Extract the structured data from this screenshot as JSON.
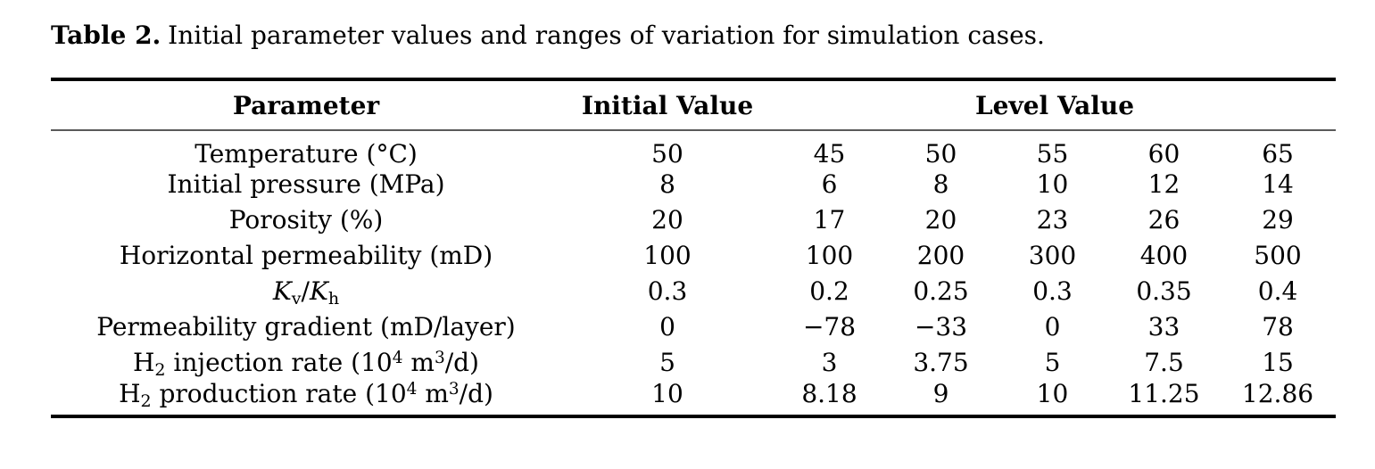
{
  "caption": {
    "label": "Table 2.",
    "text": "Initial parameter values and ranges of variation for simulation cases."
  },
  "table": {
    "headers": {
      "parameter": "Parameter",
      "initial": "Initial Value",
      "level": "Level Value"
    },
    "rows": [
      {
        "parameter": [
          {
            "t": "Temperature (°C)"
          }
        ],
        "initial": "50",
        "levels": [
          "45",
          "50",
          "55",
          "60",
          "65"
        ]
      },
      {
        "parameter": [
          {
            "t": "Initial pressure (MPa)"
          }
        ],
        "initial": "8",
        "levels": [
          "6",
          "8",
          "10",
          "12",
          "14"
        ]
      },
      {
        "parameter": [
          {
            "t": "Porosity (%)"
          }
        ],
        "initial": "20",
        "levels": [
          "17",
          "20",
          "23",
          "26",
          "29"
        ]
      },
      {
        "parameter": [
          {
            "t": "Horizontal permeability (mD)"
          }
        ],
        "initial": "100",
        "levels": [
          "100",
          "200",
          "300",
          "400",
          "500"
        ]
      },
      {
        "parameter": [
          {
            "t": "K",
            "s": "i"
          },
          {
            "t": "v",
            "s": "sub"
          },
          {
            "t": "/"
          },
          {
            "t": "K",
            "s": "i"
          },
          {
            "t": "h",
            "s": "sub"
          }
        ],
        "initial": "0.3",
        "levels": [
          "0.2",
          "0.25",
          "0.3",
          "0.35",
          "0.4"
        ]
      },
      {
        "parameter": [
          {
            "t": "Permeability gradient (mD/layer)"
          }
        ],
        "initial": "0",
        "levels": [
          "−78",
          "−33",
          "0",
          "33",
          "78"
        ]
      },
      {
        "parameter": [
          {
            "t": "H"
          },
          {
            "t": "2",
            "s": "sub"
          },
          {
            "t": " injection rate (10"
          },
          {
            "t": "4",
            "s": "sup"
          },
          {
            "t": " m"
          },
          {
            "t": "3",
            "s": "sup"
          },
          {
            "t": "/d)"
          }
        ],
        "initial": "5",
        "levels": [
          "3",
          "3.75",
          "5",
          "7.5",
          "15"
        ]
      },
      {
        "parameter": [
          {
            "t": "H"
          },
          {
            "t": "2",
            "s": "sub"
          },
          {
            "t": " production rate (10"
          },
          {
            "t": "4",
            "s": "sup"
          },
          {
            "t": " m"
          },
          {
            "t": "3",
            "s": "sup"
          },
          {
            "t": "/d)"
          }
        ],
        "initial": "10",
        "levels": [
          "8.18",
          "9",
          "10",
          "11.25",
          "12.86"
        ]
      }
    ]
  }
}
